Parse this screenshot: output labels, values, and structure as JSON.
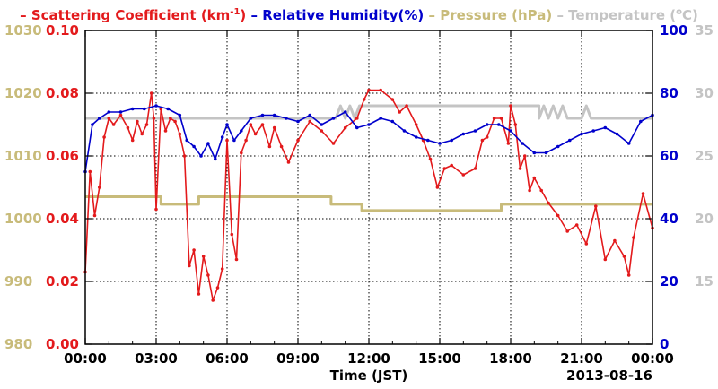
{
  "chart_data": {
    "type": "line",
    "xlabel": "Time (JST)",
    "date_label": "2013-08-16",
    "x_ticks": [
      "00:00",
      "03:00",
      "06:00",
      "09:00",
      "12:00",
      "15:00",
      "18:00",
      "21:00",
      "00:00"
    ],
    "x_range_hours": [
      0,
      24
    ],
    "legend_position": "top",
    "grid": true,
    "axes": {
      "scattering": {
        "ticks": [
          "0.00",
          "0.02",
          "0.04",
          "0.06",
          "0.08",
          "0.10"
        ],
        "range": [
          0,
          0.1
        ],
        "color": "#e31a1c"
      },
      "pressure": {
        "ticks": [
          "980",
          "990",
          "1000",
          "1010",
          "1020",
          "1030"
        ],
        "range": [
          980,
          1030
        ],
        "color": "#c8bb7a"
      },
      "humidity": {
        "ticks": [
          "0",
          "20",
          "40",
          "60",
          "80",
          "100"
        ],
        "range": [
          0,
          100
        ],
        "color": "#0000cc"
      },
      "temperature": {
        "ticks": [
          "15",
          "20",
          "25",
          "30",
          "35"
        ],
        "range": [
          10,
          35
        ],
        "color": "#c4c4c4"
      }
    },
    "series": [
      {
        "name": "Scattering Coefficient (km",
        "superscript": "-1",
        "name_suffix": ")",
        "axis": "scattering",
        "color": "#e31a1c",
        "markers": true,
        "x": [
          0,
          0.2,
          0.4,
          0.6,
          0.8,
          1.0,
          1.2,
          1.5,
          1.8,
          2.0,
          2.2,
          2.4,
          2.6,
          2.8,
          2.9,
          3.0,
          3.2,
          3.4,
          3.6,
          3.8,
          4.0,
          4.2,
          4.4,
          4.6,
          4.8,
          5.0,
          5.2,
          5.4,
          5.6,
          5.8,
          6.0,
          6.2,
          6.4,
          6.6,
          6.8,
          7.0,
          7.2,
          7.5,
          7.8,
          8.0,
          8.3,
          8.6,
          9.0,
          9.5,
          10.0,
          10.5,
          11.0,
          11.5,
          11.8,
          12.0,
          12.5,
          13.0,
          13.3,
          13.6,
          14.0,
          14.3,
          14.6,
          14.9,
          15.2,
          15.5,
          16.0,
          16.5,
          16.8,
          17.0,
          17.3,
          17.6,
          17.9,
          18.0,
          18.2,
          18.4,
          18.6,
          18.8,
          19.0,
          19.3,
          19.6,
          20.0,
          20.4,
          20.8,
          21.2,
          21.6,
          22.0,
          22.4,
          22.8,
          23.0,
          23.2,
          23.6,
          24.0
        ],
        "y": [
          0.023,
          0.055,
          0.041,
          0.05,
          0.066,
          0.072,
          0.07,
          0.073,
          0.069,
          0.065,
          0.071,
          0.067,
          0.07,
          0.08,
          0.072,
          0.043,
          0.075,
          0.068,
          0.072,
          0.071,
          0.067,
          0.06,
          0.025,
          0.03,
          0.016,
          0.028,
          0.022,
          0.014,
          0.018,
          0.024,
          0.065,
          0.035,
          0.027,
          0.061,
          0.065,
          0.07,
          0.067,
          0.07,
          0.063,
          0.069,
          0.063,
          0.058,
          0.065,
          0.071,
          0.068,
          0.064,
          0.069,
          0.072,
          0.078,
          0.081,
          0.081,
          0.078,
          0.074,
          0.076,
          0.07,
          0.065,
          0.059,
          0.05,
          0.056,
          0.057,
          0.054,
          0.056,
          0.065,
          0.066,
          0.072,
          0.072,
          0.064,
          0.076,
          0.07,
          0.056,
          0.06,
          0.049,
          0.053,
          0.049,
          0.045,
          0.041,
          0.036,
          0.038,
          0.032,
          0.044,
          0.027,
          0.033,
          0.028,
          0.022,
          0.034,
          0.048,
          0.037
        ]
      },
      {
        "name": "Relative Humidity(%)",
        "axis": "humidity",
        "color": "#0000cc",
        "markers": true,
        "x": [
          0,
          0.3,
          0.6,
          1.0,
          1.5,
          2.0,
          2.5,
          3.0,
          3.5,
          4.0,
          4.3,
          4.6,
          4.9,
          5.2,
          5.5,
          5.8,
          6.0,
          6.3,
          6.6,
          7.0,
          7.5,
          8.0,
          8.5,
          9.0,
          9.5,
          10.0,
          10.5,
          11.0,
          11.5,
          12.0,
          12.5,
          13.0,
          13.5,
          14.0,
          14.5,
          15.0,
          15.5,
          16.0,
          16.5,
          17.0,
          17.5,
          18.0,
          18.5,
          19.0,
          19.5,
          20.0,
          20.5,
          21.0,
          21.5,
          22.0,
          22.5,
          23.0,
          23.5,
          24.0
        ],
        "y": [
          55,
          70,
          72,
          74,
          74,
          75,
          75,
          76,
          75,
          73,
          65,
          63,
          60,
          64,
          59,
          66,
          70,
          65,
          68,
          72,
          73,
          73,
          72,
          71,
          73,
          70,
          72,
          74,
          69,
          70,
          72,
          71,
          68,
          66,
          65,
          64,
          65,
          67,
          68,
          70,
          70,
          68,
          64,
          61,
          61,
          63,
          65,
          67,
          68,
          69,
          67,
          64,
          71,
          73
        ]
      },
      {
        "name": "Pressure (hPa)",
        "axis": "pressure",
        "color": "#c8bb7a",
        "markers": false,
        "x": [
          0,
          3.2,
          3.2,
          4.8,
          4.8,
          10.4,
          10.4,
          11.7,
          11.7,
          17.6,
          17.6,
          24.0
        ],
        "y": [
          1003.5,
          1003.5,
          1002.3,
          1002.3,
          1003.5,
          1003.5,
          1002.3,
          1002.3,
          1001.3,
          1001.3,
          1002.3,
          1002.3
        ]
      },
      {
        "name": "Temperature (",
        "superscript": "o",
        "name_suffix": "C)",
        "axis": "temperature",
        "color": "#c4c4c4",
        "markers": false,
        "x": [
          0,
          10.4,
          10.6,
          10.8,
          11.0,
          11.2,
          11.4,
          11.6,
          12.0,
          15.0,
          18.0,
          19.2,
          19.2,
          19.4,
          19.6,
          19.8,
          20.0,
          20.2,
          20.4,
          20.6,
          20.8,
          21.0,
          21.2,
          21.4,
          21.6,
          23.0,
          24.0
        ],
        "y": [
          28,
          28,
          28,
          29,
          28,
          29,
          28,
          29,
          29,
          29,
          29,
          29,
          28,
          29,
          28,
          29,
          28,
          29,
          28,
          28,
          28,
          28,
          29,
          28,
          28,
          28,
          28
        ]
      }
    ]
  }
}
